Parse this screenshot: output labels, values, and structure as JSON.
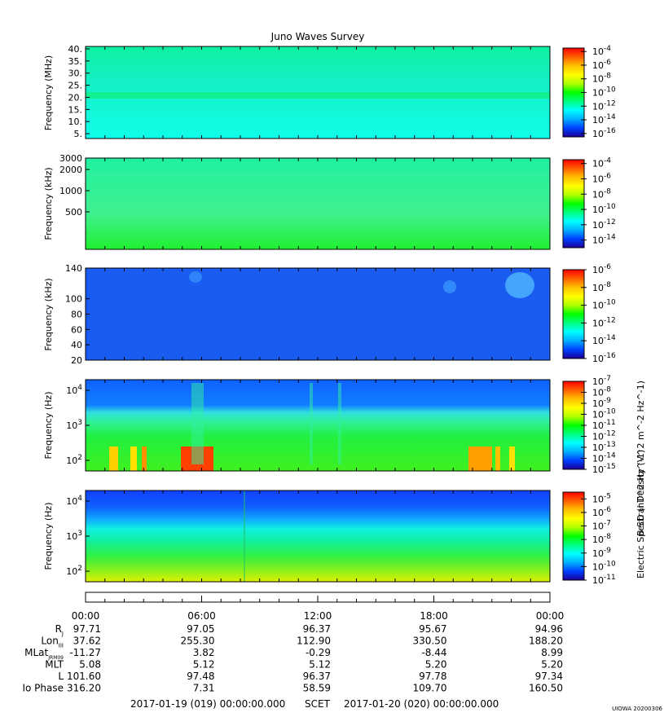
{
  "title": "Juno Waves Survey",
  "chart_data": [
    {
      "type": "heatmap",
      "ylabel": "Frequency (MHz)",
      "yticks": [
        "5.",
        "10.",
        "15.",
        "20.",
        "25.",
        "30.",
        "35.",
        "40."
      ],
      "ylim": [
        3,
        41
      ],
      "colorbar_ticks": [
        "10^-4",
        "10^-6",
        "10^-8",
        "10^-10",
        "10^-12",
        "10^-14",
        "10^-16"
      ],
      "colorbar_range": [
        -16.5,
        -3.5
      ],
      "band_feature_MHz": 21
    },
    {
      "type": "heatmap",
      "ylabel": "Frequency (kHz)",
      "yticks": [
        "500",
        "1000",
        "2000",
        "3000"
      ],
      "colorbar_ticks": [
        "10^-4",
        "10^-6",
        "10^-8",
        "10^-10",
        "10^-12",
        "10^-14"
      ],
      "colorbar_range": [
        -15,
        -3.5
      ],
      "colorbar_label": "Electric Spectral Density (V^2 m^-2 Hz^-1)"
    },
    {
      "type": "heatmap",
      "ylabel": "Frequency (kHz)",
      "yticks": [
        "20",
        "40",
        "60",
        "80",
        "100",
        "140"
      ],
      "ylim": [
        20,
        140
      ],
      "colorbar_ticks": [
        "10^-6",
        "10^-8",
        "10^-10",
        "10^-12",
        "10^-14",
        "10^-16"
      ],
      "colorbar_range": [
        -16,
        -6
      ]
    },
    {
      "type": "heatmap",
      "ylabel": "Frequency (Hz)",
      "yticks": [
        "10^2",
        "10^3",
        "10^4"
      ],
      "ylim": [
        50,
        20000
      ],
      "scale": "log",
      "colorbar_ticks": [
        "10^-7",
        "10^-8",
        "10^-9",
        "10^-10",
        "10^-11",
        "10^-12",
        "10^-13",
        "10^-14",
        "10^-15"
      ],
      "colorbar_range": [
        -15,
        -7
      ]
    },
    {
      "type": "heatmap",
      "ylabel": "Frequency (Hz)",
      "yticks": [
        "10^2",
        "10^3",
        "10^4"
      ],
      "ylim": [
        50,
        20000
      ],
      "scale": "log",
      "colorbar_ticks": [
        "10^-5",
        "10^-6",
        "10^-7",
        "10^-8",
        "10^-9",
        "10^-10",
        "10^-11"
      ],
      "colorbar_range": [
        -11,
        -4.5
      ],
      "colorbar_label": "B SD (nT^2 Hz^-1)"
    }
  ],
  "colormap": [
    "#1c0098",
    "#0040ff",
    "#00b0ff",
    "#00ffff",
    "#00ff80",
    "#00ff00",
    "#b0ff00",
    "#ffff00",
    "#ffc000",
    "#ff6000",
    "#ff0000"
  ],
  "time_axis": {
    "ticks": [
      "00:00",
      "06:00",
      "12:00",
      "18:00",
      "00:00"
    ]
  },
  "ephemeris": {
    "labels": [
      "RJ",
      "LonIII",
      "MLatJRM09",
      "MLT",
      "L",
      "Io Phase"
    ],
    "rows": [
      [
        "97.71",
        "97.05",
        "96.37",
        "95.67",
        "94.96"
      ],
      [
        "37.62",
        "255.30",
        "112.90",
        "330.50",
        "188.20"
      ],
      [
        "-11.27",
        "3.82",
        "-0.29",
        "-8.44",
        "8.99"
      ],
      [
        "5.08",
        "5.12",
        "5.12",
        "5.20",
        "5.20"
      ],
      [
        "101.60",
        "97.48",
        "96.37",
        "97.78",
        "97.34"
      ],
      [
        "316.20",
        "7.31",
        "58.59",
        "109.70",
        "160.50"
      ]
    ]
  },
  "footer": {
    "start": "2017-01-19 (019) 00:00:00.000",
    "scet": "SCET",
    "end": "2017-01-20 (020) 00:00:00.000",
    "stamp": "UIOWA 20200306"
  }
}
